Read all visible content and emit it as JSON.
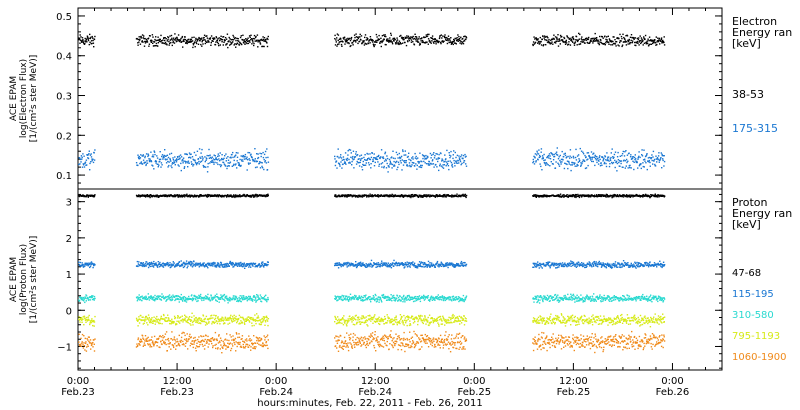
{
  "chart_data": [
    {
      "type": "scatter",
      "ylabel": [
        "ACE EPAM",
        "log(Electron Flux)",
        "[1/(cm²s ster MeV)]"
      ],
      "ylim": [
        0.065,
        0.52
      ],
      "yticks": [
        0.1,
        0.2,
        0.3,
        0.4,
        0.5
      ],
      "ytick_labels": [
        "0.1",
        "0.2",
        "0.3",
        "0.4",
        "0.5"
      ],
      "grid": false,
      "legend_title": [
        "Electron",
        "Energy ran",
        "[keV]"
      ],
      "series": [
        {
          "name": "38-53",
          "color": "#000000",
          "center": 0.44,
          "spread": 0.012
        },
        {
          "name": "175-315",
          "color": "#1a77d2",
          "center": 0.14,
          "spread": 0.02
        }
      ]
    },
    {
      "type": "scatter",
      "ylabel": [
        "ACE EPAM",
        "log(Proton Flux)",
        "[1/(cm²s ster MeV)]"
      ],
      "ylim": [
        -1.65,
        3.35
      ],
      "yticks": [
        -1,
        0,
        1,
        2,
        3
      ],
      "ytick_labels": [
        "−1",
        "0",
        "1",
        "2",
        "3"
      ],
      "grid": false,
      "legend_title": [
        "Proton",
        "Energy ran",
        "[keV]"
      ],
      "series": [
        {
          "name": "47-68",
          "color": "#000000",
          "center": 3.18,
          "spread": 0.03
        },
        {
          "name": "115-195",
          "color": "#1a77d2",
          "center": 1.28,
          "spread": 0.07
        },
        {
          "name": "310-580",
          "color": "#2ad9d0",
          "center": 0.35,
          "spread": 0.08
        },
        {
          "name": "795-1193",
          "color": "#d6ea18",
          "center": -0.25,
          "spread": 0.12
        },
        {
          "name": "1060-1900",
          "color": "#f08a1a",
          "center": -0.85,
          "spread": 0.2
        }
      ]
    }
  ],
  "x_axis": {
    "xlim_hours": [
      0,
      78
    ],
    "xlabel": "hours:minutes, Feb. 22, 2011 - Feb. 26, 2011",
    "ticks": [
      {
        "hour": 0,
        "time": "0:00",
        "date": "Feb.23"
      },
      {
        "hour": 12,
        "time": "12:00",
        "date": "Feb.23"
      },
      {
        "hour": 24,
        "time": "0:00",
        "date": "Feb.24"
      },
      {
        "hour": 36,
        "time": "12:00",
        "date": "Feb.24"
      },
      {
        "hour": 48,
        "time": "0:00",
        "date": "Feb.25"
      },
      {
        "hour": 60,
        "time": "12:00",
        "date": "Feb.25"
      },
      {
        "hour": 72,
        "time": "0:00",
        "date": "Feb.26"
      }
    ],
    "minor_step_hours": 2,
    "data_segments_hours": [
      [
        0,
        2
      ],
      [
        7,
        23
      ],
      [
        31,
        47
      ],
      [
        55,
        71
      ]
    ]
  }
}
